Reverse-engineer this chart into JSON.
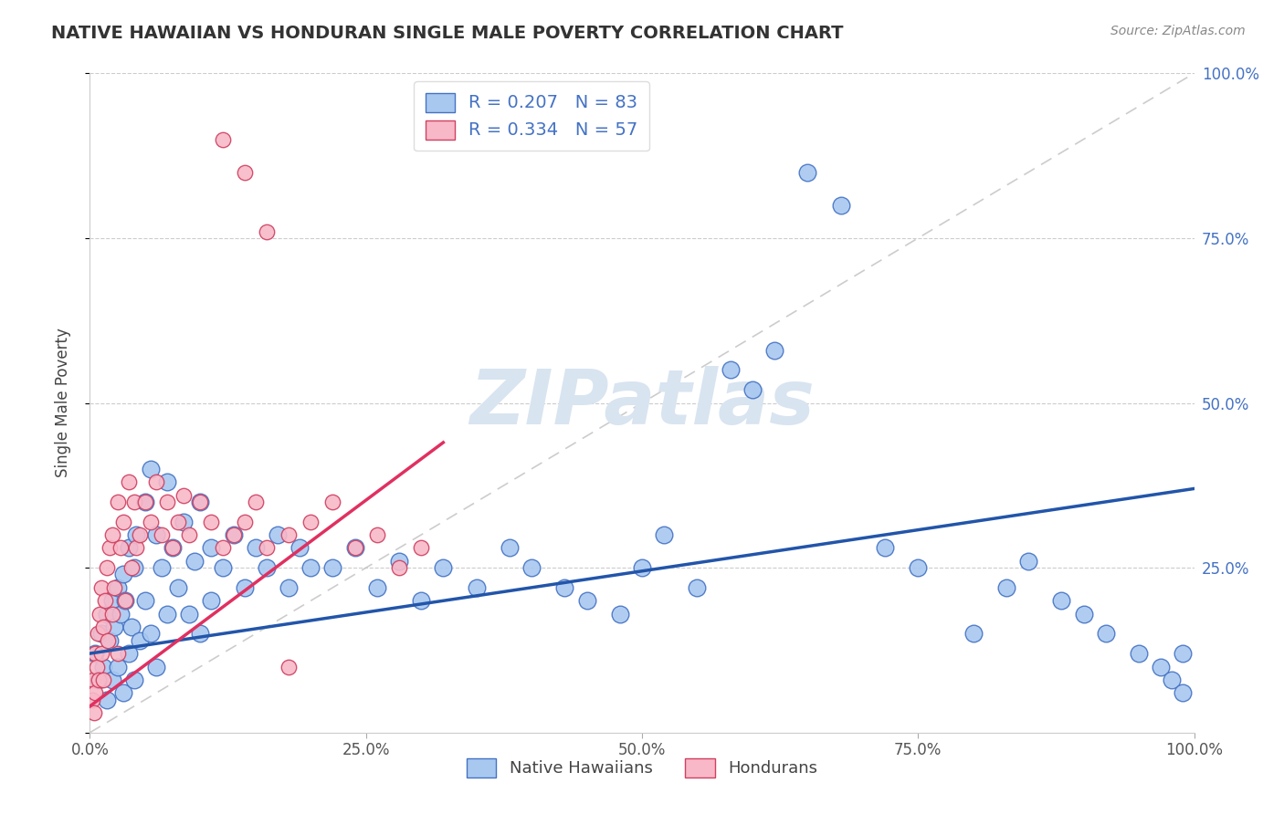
{
  "title": "NATIVE HAWAIIAN VS HONDURAN SINGLE MALE POVERTY CORRELATION CHART",
  "source": "Source: ZipAtlas.com",
  "ylabel": "Single Male Poverty",
  "legend_label1": "Native Hawaiians",
  "legend_label2": "Hondurans",
  "R1": 0.207,
  "N1": 83,
  "R2": 0.334,
  "N2": 57,
  "color_blue_face": "#a8c8f0",
  "color_blue_edge": "#4472c4",
  "color_blue_line": "#2255aa",
  "color_pink_face": "#f8b8c8",
  "color_pink_edge": "#d04060",
  "color_pink_line": "#e03060",
  "color_diag": "#c0c0c0",
  "watermark_color": "#d8e4f0",
  "blue_x": [
    0.005,
    0.008,
    0.01,
    0.012,
    0.015,
    0.015,
    0.018,
    0.02,
    0.02,
    0.022,
    0.025,
    0.025,
    0.028,
    0.03,
    0.03,
    0.032,
    0.035,
    0.035,
    0.038,
    0.04,
    0.04,
    0.042,
    0.045,
    0.05,
    0.05,
    0.055,
    0.055,
    0.06,
    0.06,
    0.065,
    0.07,
    0.07,
    0.075,
    0.08,
    0.085,
    0.09,
    0.095,
    0.1,
    0.1,
    0.11,
    0.11,
    0.12,
    0.13,
    0.14,
    0.15,
    0.16,
    0.17,
    0.18,
    0.19,
    0.2,
    0.22,
    0.24,
    0.26,
    0.28,
    0.3,
    0.32,
    0.35,
    0.38,
    0.4,
    0.43,
    0.45,
    0.48,
    0.5,
    0.52,
    0.55,
    0.58,
    0.6,
    0.62,
    0.65,
    0.68,
    0.72,
    0.75,
    0.8,
    0.83,
    0.85,
    0.88,
    0.9,
    0.92,
    0.95,
    0.97,
    0.98,
    0.99,
    0.99
  ],
  "blue_y": [
    0.12,
    0.08,
    0.15,
    0.1,
    0.18,
    0.05,
    0.14,
    0.2,
    0.08,
    0.16,
    0.22,
    0.1,
    0.18,
    0.24,
    0.06,
    0.2,
    0.28,
    0.12,
    0.16,
    0.25,
    0.08,
    0.3,
    0.14,
    0.35,
    0.2,
    0.4,
    0.15,
    0.3,
    0.1,
    0.25,
    0.38,
    0.18,
    0.28,
    0.22,
    0.32,
    0.18,
    0.26,
    0.35,
    0.15,
    0.28,
    0.2,
    0.25,
    0.3,
    0.22,
    0.28,
    0.25,
    0.3,
    0.22,
    0.28,
    0.25,
    0.25,
    0.28,
    0.22,
    0.26,
    0.2,
    0.25,
    0.22,
    0.28,
    0.25,
    0.22,
    0.2,
    0.18,
    0.25,
    0.3,
    0.22,
    0.55,
    0.52,
    0.58,
    0.85,
    0.8,
    0.28,
    0.25,
    0.15,
    0.22,
    0.26,
    0.2,
    0.18,
    0.15,
    0.12,
    0.1,
    0.08,
    0.12,
    0.06
  ],
  "pink_x": [
    0.002,
    0.003,
    0.004,
    0.005,
    0.005,
    0.006,
    0.007,
    0.008,
    0.009,
    0.01,
    0.01,
    0.012,
    0.012,
    0.014,
    0.015,
    0.016,
    0.018,
    0.02,
    0.02,
    0.022,
    0.025,
    0.025,
    0.028,
    0.03,
    0.032,
    0.035,
    0.038,
    0.04,
    0.042,
    0.045,
    0.05,
    0.055,
    0.06,
    0.065,
    0.07,
    0.075,
    0.08,
    0.085,
    0.09,
    0.1,
    0.11,
    0.12,
    0.13,
    0.14,
    0.15,
    0.16,
    0.18,
    0.2,
    0.22,
    0.24,
    0.26,
    0.28,
    0.3,
    0.12,
    0.14,
    0.16,
    0.18
  ],
  "pink_y": [
    0.05,
    0.08,
    0.03,
    0.12,
    0.06,
    0.1,
    0.15,
    0.08,
    0.18,
    0.12,
    0.22,
    0.16,
    0.08,
    0.2,
    0.25,
    0.14,
    0.28,
    0.18,
    0.3,
    0.22,
    0.35,
    0.12,
    0.28,
    0.32,
    0.2,
    0.38,
    0.25,
    0.35,
    0.28,
    0.3,
    0.35,
    0.32,
    0.38,
    0.3,
    0.35,
    0.28,
    0.32,
    0.36,
    0.3,
    0.35,
    0.32,
    0.28,
    0.3,
    0.32,
    0.35,
    0.28,
    0.3,
    0.32,
    0.35,
    0.28,
    0.3,
    0.25,
    0.28,
    0.9,
    0.85,
    0.76,
    0.1
  ]
}
